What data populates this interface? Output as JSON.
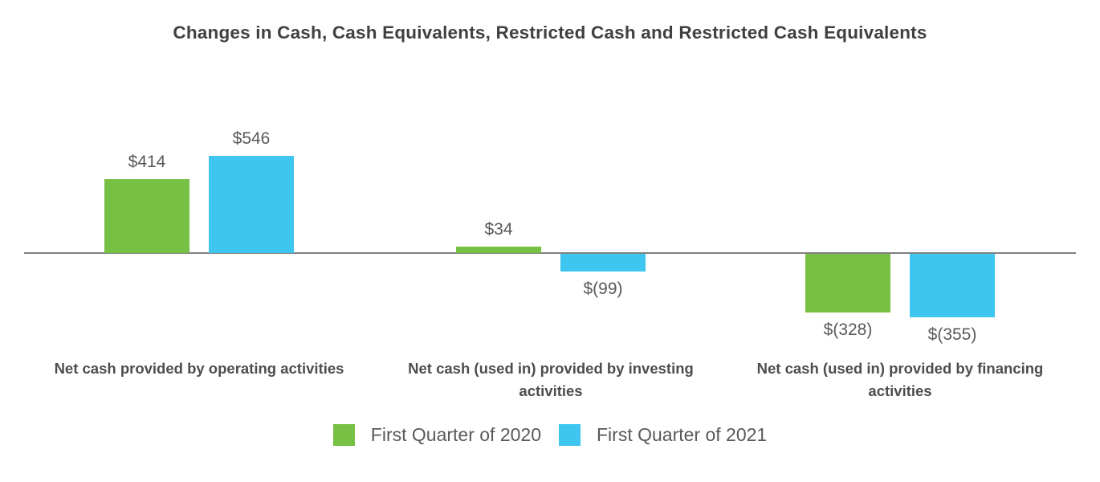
{
  "title": "Changes in Cash, Cash Equivalents, Restricted Cash and Restricted Cash Equivalents",
  "chart_data": {
    "type": "bar",
    "categories": [
      "Net cash provided by operating activities",
      "Net cash (used in) provided by investing activities",
      "Net cash (used in) provided by financing activities"
    ],
    "series": [
      {
        "name": "First Quarter of 2020",
        "color": "#76C043",
        "values": [
          414,
          34,
          -328
        ],
        "labels": [
          "$414",
          "$34",
          "$(328)"
        ]
      },
      {
        "name": "First Quarter of 2021",
        "color": "#3EC6F0",
        "values": [
          546,
          -99,
          -355
        ],
        "labels": [
          "$546",
          "$(99)",
          "$(355)"
        ]
      }
    ],
    "title": "Changes in Cash, Cash Equivalents, Restricted Cash and Restricted Cash Equivalents",
    "xlabel": "",
    "ylabel": "",
    "ylim": [
      -400,
      600
    ],
    "grid": false,
    "legend_position": "bottom",
    "baseline_color": "#7f7f7f",
    "value_label_color": "#595959",
    "category_label_color": "#4d4d4d",
    "title_color": "#404040",
    "background_color": "#ffffff"
  }
}
